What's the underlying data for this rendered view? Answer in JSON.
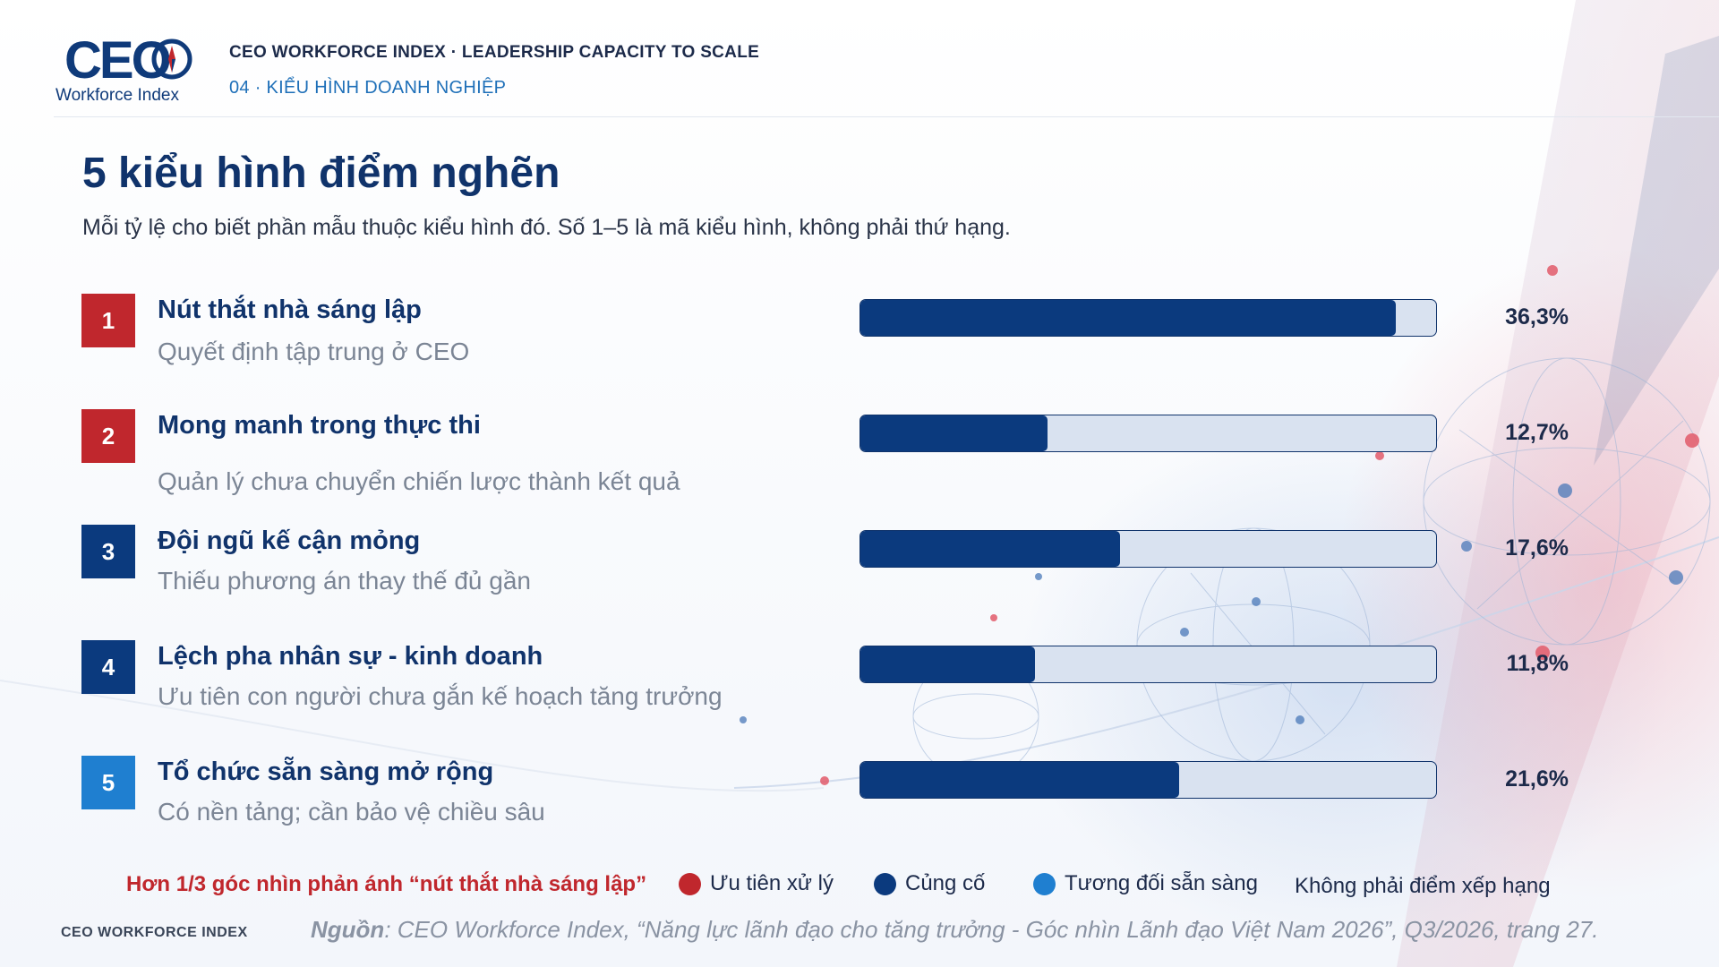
{
  "header": {
    "logo_text": "CEO",
    "logo_subtext": "Workforce Index",
    "title": "CEO WORKFORCE INDEX · LEADERSHIP CAPACITY TO SCALE",
    "section": "04 · KIỂU HÌNH DOANH NGHIỆP"
  },
  "page": {
    "title": "5 kiểu hình điểm nghẽn",
    "subtitle": "Mỗi tỷ lệ cho biết phần mẫu thuộc kiểu hình đó. Số 1–5 là mã kiểu hình, không phải thứ hạng."
  },
  "colors": {
    "priority": "#c0272d",
    "consolidate": "#0b3a7e",
    "ready": "#1f7fd0",
    "bar_fill": "#0b3a7e",
    "bar_track": "#d9e2f0"
  },
  "rows": [
    {
      "code": "1",
      "label": "Nút thắt nhà sáng lập",
      "desc": "Quyết định tập trung ở CEO",
      "value_text": "36,3%",
      "group": "priority"
    },
    {
      "code": "2",
      "label": "Mong manh trong thực thi",
      "desc": "Quản lý chưa chuyển chiến lược thành kết quả",
      "value_text": "12,7%",
      "group": "priority"
    },
    {
      "code": "3",
      "label": "Đội ngũ kế cận mỏng",
      "desc": "Thiếu phương án thay thế đủ gần",
      "value_text": "17,6%",
      "group": "consolidate"
    },
    {
      "code": "4",
      "label": "Lệch pha nhân sự - kinh doanh",
      "desc": "Ưu tiên con người chưa gắn kế hoạch tăng trưởng",
      "value_text": "11,8%",
      "group": "consolidate"
    },
    {
      "code": "5",
      "label": "Tổ chức sẵn sàng mở rộng",
      "desc": "Có nền tảng; cần bảo vệ chiều sâu",
      "value_text": "21,6%",
      "group": "ready"
    }
  ],
  "chart_data": {
    "type": "bar",
    "orientation": "horizontal",
    "title": "5 kiểu hình điểm nghẽn",
    "categories": [
      "Nút thắt nhà sáng lập",
      "Mong manh trong thực thi",
      "Đội ngũ kế cận mỏng",
      "Lệch pha nhân sự - kinh doanh",
      "Tổ chức sẵn sàng mở rộng"
    ],
    "values": [
      36.3,
      12.7,
      17.6,
      11.8,
      21.6
    ],
    "unit": "%",
    "xlim": [
      0,
      39
    ],
    "grid": false,
    "legend": "bottom"
  },
  "legend": {
    "note": "Hơn 1/3 góc nhìn phản ánh “nút thắt nhà sáng lập”",
    "items": [
      {
        "label": "Ưu tiên xử lý",
        "color": "#c0272d"
      },
      {
        "label": "Củng cố",
        "color": "#0b3a7e"
      },
      {
        "label": "Tương đối sẵn sàng",
        "color": "#1f7fd0"
      }
    ],
    "caption": "Không phải điểm xếp hạng"
  },
  "footer": {
    "brand": "CEO WORKFORCE INDEX",
    "source_label": "Nguồn",
    "source_text": ": CEO Workforce Index, “Năng lực lãnh đạo cho tăng trưởng - Góc nhìn Lãnh đạo Việt Nam 2026”, Q3/2026, trang 27."
  }
}
